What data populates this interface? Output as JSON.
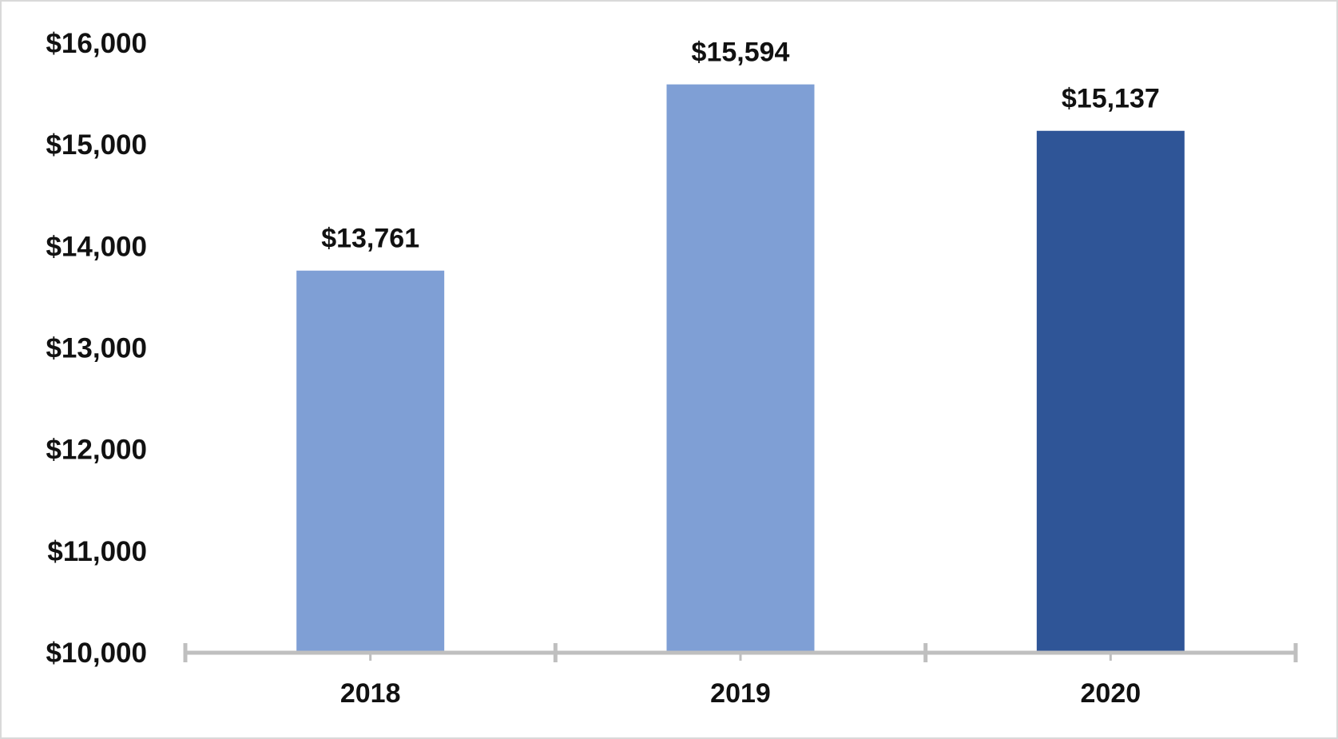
{
  "chart_data": {
    "type": "bar",
    "title": "",
    "xlabel": "",
    "ylabel": "",
    "categories": [
      "2018",
      "2019",
      "2020"
    ],
    "values": [
      13761,
      15594,
      15137
    ],
    "data_labels": [
      "$13,761",
      "$15,594",
      "$15,137"
    ],
    "bar_colors": [
      "#7f9fd5",
      "#7f9fd5",
      "#2f5597"
    ],
    "ylim": [
      10000,
      16000
    ],
    "yticks": [
      10000,
      11000,
      12000,
      13000,
      14000,
      15000,
      16000
    ],
    "ytick_labels": [
      "$10,000",
      "$11,000",
      "$12,000",
      "$13,000",
      "$14,000",
      "$15,000",
      "$16,000"
    ],
    "grid": false,
    "legend": "none",
    "axis_color": "#bfbfbf"
  }
}
